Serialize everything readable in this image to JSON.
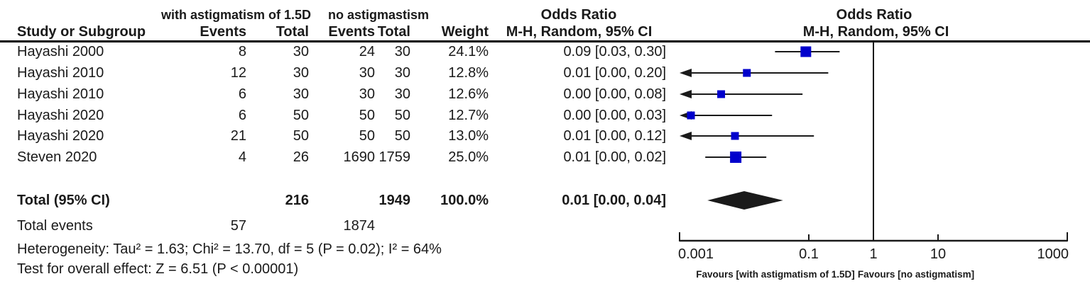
{
  "header": {
    "group1": "with astigmatism of 1.5D",
    "group2": "no astigmastism",
    "col_study": "Study or Subgroup",
    "col_events1": "Events",
    "col_total1": "Total",
    "col_events2": "Events",
    "col_total2": "Total",
    "col_weight": "Weight",
    "or_title_left": "Odds Ratio",
    "or_subtitle_left": "M-H, Random, 95% CI",
    "or_title_right": "Odds Ratio",
    "or_subtitle_right": "M-H, Random, 95% CI"
  },
  "rows": [
    {
      "study": "Hayashi 2000",
      "events1": "8",
      "total1": "30",
      "events2": "24",
      "total2": "30",
      "weight": "24.1%",
      "ci": "0.09 [0.03, 0.30]"
    },
    {
      "study": "Hayashi 2010",
      "events1": "12",
      "total1": "30",
      "events2": "30",
      "total2": "30",
      "weight": "12.8%",
      "ci": "0.01 [0.00, 0.20]"
    },
    {
      "study": "Hayashi 2010",
      "events1": "6",
      "total1": "30",
      "events2": "30",
      "total2": "30",
      "weight": "12.6%",
      "ci": "0.00 [0.00, 0.08]"
    },
    {
      "study": "Hayashi 2020",
      "events1": "6",
      "total1": "50",
      "events2": "50",
      "total2": "50",
      "weight": "12.7%",
      "ci": "0.00 [0.00, 0.03]"
    },
    {
      "study": "Hayashi 2020",
      "events1": "21",
      "total1": "50",
      "events2": "50",
      "total2": "50",
      "weight": "13.0%",
      "ci": "0.01 [0.00, 0.12]"
    },
    {
      "study": "Steven 2020",
      "events1": "4",
      "total1": "26",
      "events2": "1690",
      "total2": "1759",
      "weight": "25.0%",
      "ci": "0.01 [0.00, 0.02]"
    }
  ],
  "totals": {
    "label": "Total (95% CI)",
    "total1": "216",
    "total2": "1949",
    "weight": "100.0%",
    "ci": "0.01 [0.00, 0.04]"
  },
  "total_events": {
    "label": "Total events",
    "events1": "57",
    "events2": "1874"
  },
  "footnotes": {
    "heterogeneity": "Heterogeneity: Tau² = 1.63; Chi² = 13.70, df = 5 (P = 0.02); I² = 64%",
    "overall_effect": "Test for overall effect: Z = 6.51 (P < 0.00001)"
  },
  "chart_data": {
    "type": "forest",
    "effect_measure": "Odds Ratio, M-H, Random, 95% CI",
    "x_scale": "log10",
    "x_range": [
      0.001,
      1000
    ],
    "x_ticks": [
      0.001,
      0.1,
      1,
      10,
      1000
    ],
    "x_tick_labels": [
      "0.001",
      "0.1",
      "1",
      "10",
      "1000"
    ],
    "null_line": 1,
    "favours_left": "Favours [with astigmatism of 1.5D]",
    "favours_right": "Favours [no astigmatism]",
    "marker_color": "#0000CC",
    "line_color": "#1a1a1a",
    "studies": [
      {
        "name": "Hayashi 2000",
        "or": 0.09,
        "ci_low": 0.03,
        "ci_high": 0.3,
        "weight_pct": 24.1,
        "arrow_left": false
      },
      {
        "name": "Hayashi 2010",
        "or": 0.011,
        "ci_low": null,
        "ci_high": 0.2,
        "weight_pct": 12.8,
        "arrow_left": true
      },
      {
        "name": "Hayashi 2010",
        "or": 0.0044,
        "ci_low": null,
        "ci_high": 0.08,
        "weight_pct": 12.6,
        "arrow_left": true
      },
      {
        "name": "Hayashi 2020",
        "or": 0.0015,
        "ci_low": null,
        "ci_high": 0.027,
        "weight_pct": 12.7,
        "arrow_left": true
      },
      {
        "name": "Hayashi 2020",
        "or": 0.0072,
        "ci_low": null,
        "ci_high": 0.12,
        "weight_pct": 13.0,
        "arrow_left": true
      },
      {
        "name": "Steven 2020",
        "or": 0.0074,
        "ci_low": 0.0025,
        "ci_high": 0.022,
        "weight_pct": 25.0,
        "arrow_left": false
      }
    ],
    "total_diamond": {
      "or": 0.01,
      "ci_low": 0.0027,
      "ci_high": 0.04
    }
  }
}
